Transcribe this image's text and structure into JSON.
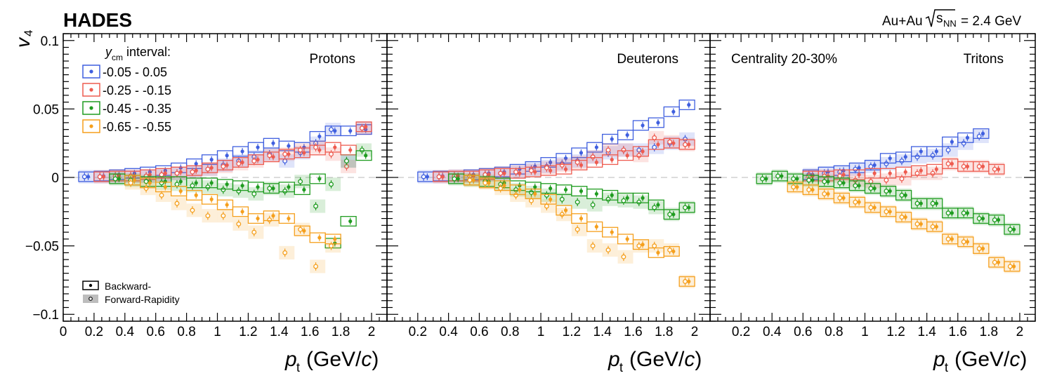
{
  "header": {
    "experiment": "HADES",
    "system": "Au+Au",
    "energy_symbol": "s",
    "energy_sub": "NN",
    "energy_value": "= 2.4 GeV"
  },
  "legend": {
    "title_var": "y",
    "title_sub": "cm",
    "title_rest": " interval:",
    "backward_label": "Backward-",
    "forward_label": "Forward-Rapidity"
  },
  "colors": {
    "blue": "#3f5fdf",
    "red": "#ee5b4f",
    "green": "#1f9c20",
    "orange": "#f59f1c"
  },
  "chart_data": [
    {
      "type": "scatter",
      "panel": "left",
      "title": "Protons",
      "annotation": "",
      "xlabel_var": "p",
      "xlabel_sub": "t",
      "xlabel_unit_pre": " (GeV/",
      "xlabel_unit_var": "c",
      "xlabel_unit_post": ")",
      "ylabel_var": "v",
      "ylabel_sub": "4",
      "xlim": [
        0,
        2.1
      ],
      "ylim": [
        -0.105,
        0.105
      ],
      "x_ticks": [
        0,
        0.2,
        0.4,
        0.6,
        0.8,
        1,
        1.2,
        1.4,
        1.6,
        1.8,
        2
      ],
      "x_tick_labels": [
        "0",
        "0.2",
        "0.4",
        "0.6",
        "0.8",
        "1",
        "1.2",
        "1.4",
        "1.6",
        "1.8",
        "2"
      ],
      "y_ticks": [
        0.1,
        0.05,
        0,
        -0.05,
        -0.1
      ],
      "y_tick_labels": [
        "0.1",
        "0.05",
        "0",
        "−0.05",
        "−0.1"
      ],
      "series": [
        {
          "name": "-0.05 - 0.05",
          "color": "blue",
          "x": [
            0.15,
            0.25,
            0.35,
            0.45,
            0.55,
            0.65,
            0.75,
            0.85,
            0.95,
            1.05,
            1.15,
            1.25,
            1.35,
            1.45,
            1.55,
            1.65,
            1.75,
            1.85,
            1.95
          ],
          "backward": [
            0.0005,
            0.001,
            0.002,
            0.003,
            0.004,
            0.005,
            0.007,
            0.01,
            0.013,
            0.016,
            0.019,
            0.022,
            0.025,
            0.023,
            0.022,
            0.03,
            0.034,
            0.034,
            0.035
          ],
          "forward": [
            0.0005,
            0.0005,
            0.001,
            0.001,
            0.001,
            0.002,
            0.003,
            0.004,
            0.006,
            0.009,
            0.012,
            0.015,
            0.017,
            0.012,
            0.018,
            0.025,
            0.035,
            0.012,
            0.036
          ]
        },
        {
          "name": "-0.25 - -0.15",
          "color": "red",
          "x": [
            0.25,
            0.35,
            0.45,
            0.55,
            0.65,
            0.75,
            0.85,
            0.95,
            1.05,
            1.15,
            1.25,
            1.35,
            1.45,
            1.55,
            1.65,
            1.75,
            1.85,
            1.95
          ],
          "backward": [
            0.0005,
            0.001,
            0.001,
            0.002,
            0.003,
            0.004,
            0.005,
            0.007,
            0.009,
            0.011,
            0.013,
            0.015,
            0.017,
            0.018,
            0.02,
            0.022,
            0.02,
            0.037
          ],
          "forward": [
            0.0005,
            0.001,
            0.001,
            0.001,
            0.002,
            0.003,
            0.004,
            0.006,
            0.008,
            0.01,
            0.012,
            0.016,
            0.017,
            0.02,
            0.022,
            0.017,
            0.008,
            0.036
          ]
        },
        {
          "name": "-0.45 - -0.35",
          "color": "green",
          "x": [
            0.35,
            0.45,
            0.55,
            0.65,
            0.75,
            0.85,
            0.95,
            1.05,
            1.15,
            1.25,
            1.35,
            1.45,
            1.55,
            1.65,
            1.75,
            1.85,
            1.95
          ],
          "backward": [
            -0.001,
            -0.002,
            -0.003,
            -0.003,
            -0.003,
            -0.004,
            -0.004,
            -0.005,
            -0.006,
            -0.007,
            -0.008,
            -0.007,
            -0.009,
            -0.001,
            -0.048,
            -0.032,
            0.016
          ],
          "forward": [
            -0.001,
            -0.002,
            -0.003,
            -0.004,
            -0.005,
            -0.006,
            -0.007,
            -0.009,
            -0.01,
            -0.012,
            -0.008,
            -0.01,
            -0.003,
            -0.021,
            -0.005,
            0.012,
            0.02
          ]
        },
        {
          "name": "-0.65 - -0.55",
          "color": "orange",
          "x": [
            0.45,
            0.55,
            0.65,
            0.75,
            0.85,
            0.95,
            1.05,
            1.15,
            1.25,
            1.35,
            1.45,
            1.55,
            1.65,
            1.75
          ],
          "backward": [
            -0.002,
            -0.004,
            -0.007,
            -0.01,
            -0.013,
            -0.016,
            -0.02,
            -0.025,
            -0.03,
            -0.028,
            -0.03,
            -0.039,
            -0.044,
            -0.045
          ],
          "forward": [
            -0.004,
            -0.008,
            -0.013,
            -0.019,
            -0.024,
            -0.028,
            -0.028,
            -0.034,
            -0.04,
            -0.031,
            -0.055,
            -0.038,
            -0.065,
            -0.05
          ]
        }
      ]
    },
    {
      "type": "scatter",
      "panel": "middle",
      "title": "Deuterons",
      "annotation": "",
      "xlim": [
        0,
        2.1
      ],
      "ylim": [
        -0.105,
        0.105
      ],
      "x_ticks": [
        0.2,
        0.4,
        0.6,
        0.8,
        1,
        1.2,
        1.4,
        1.6,
        1.8,
        2
      ],
      "x_tick_labels": [
        "0.2",
        "0.4",
        "0.6",
        "0.8",
        "1",
        "1.2",
        "1.4",
        "1.6",
        "1.8",
        "2"
      ],
      "series": [
        {
          "name": "-0.05 - 0.05",
          "color": "blue",
          "x": [
            0.25,
            0.35,
            0.45,
            0.55,
            0.65,
            0.75,
            0.85,
            0.95,
            1.05,
            1.15,
            1.25,
            1.35,
            1.45,
            1.55,
            1.65,
            1.75,
            1.85,
            1.95
          ],
          "backward": [
            0.0005,
            0.001,
            0.001,
            0.002,
            0.003,
            0.004,
            0.006,
            0.008,
            0.011,
            0.014,
            0.018,
            0.022,
            0.028,
            0.031,
            0.038,
            0.04,
            0.048,
            0.053
          ],
          "forward": [
            0.0005,
            0.0005,
            0.001,
            0.001,
            0.002,
            0.003,
            0.004,
            0.006,
            0.008,
            0.01,
            0.012,
            0.015,
            0.018,
            0.02,
            0.02,
            0.022,
            0.025,
            0.028
          ]
        },
        {
          "name": "-0.25 - -0.15",
          "color": "red",
          "x": [
            0.35,
            0.45,
            0.55,
            0.65,
            0.75,
            0.85,
            0.95,
            1.05,
            1.15,
            1.25,
            1.35,
            1.45,
            1.55,
            1.65,
            1.75,
            1.85,
            1.95
          ],
          "backward": [
            0.0005,
            0.001,
            0.001,
            0.002,
            0.003,
            0.003,
            0.004,
            0.005,
            0.006,
            0.009,
            0.011,
            0.013,
            0.016,
            0.019,
            0.024,
            0.025,
            0.024
          ],
          "forward": [
            0.0005,
            0.001,
            0.001,
            0.002,
            0.003,
            0.004,
            0.005,
            0.007,
            0.009,
            0.011,
            0.015,
            0.02,
            0.02,
            0.016,
            0.029,
            0.026,
            0.024
          ]
        },
        {
          "name": "-0.45 - -0.35",
          "color": "green",
          "x": [
            0.45,
            0.55,
            0.65,
            0.75,
            0.85,
            0.95,
            1.05,
            1.15,
            1.25,
            1.35,
            1.45,
            1.55,
            1.65,
            1.75,
            1.85,
            1.95
          ],
          "backward": [
            -0.001,
            -0.002,
            -0.003,
            -0.004,
            -0.006,
            -0.007,
            -0.008,
            -0.009,
            -0.01,
            -0.012,
            -0.013,
            -0.015,
            -0.015,
            -0.02,
            -0.027,
            -0.022
          ],
          "forward": [
            -0.001,
            -0.002,
            -0.003,
            -0.005,
            -0.009,
            -0.011,
            -0.013,
            -0.016,
            -0.018,
            -0.02,
            -0.016,
            -0.017,
            -0.018,
            -0.022,
            -0.027,
            -0.022
          ]
        },
        {
          "name": "-0.65 - -0.55",
          "color": "orange",
          "x": [
            0.55,
            0.65,
            0.75,
            0.85,
            0.95,
            1.05,
            1.15,
            1.25,
            1.35,
            1.45,
            1.55,
            1.65,
            1.75,
            1.85,
            1.95
          ],
          "backward": [
            -0.002,
            -0.004,
            -0.006,
            -0.009,
            -0.012,
            -0.016,
            -0.024,
            -0.03,
            -0.036,
            -0.04,
            -0.045,
            -0.049,
            -0.055,
            -0.054,
            -0.076
          ],
          "forward": [
            -0.002,
            -0.004,
            -0.008,
            -0.013,
            -0.017,
            -0.021,
            -0.027,
            -0.038,
            -0.05,
            -0.053,
            -0.058,
            -0.05,
            -0.05,
            -0.053,
            -0.076
          ]
        }
      ]
    },
    {
      "type": "scatter",
      "panel": "right",
      "title": "Tritons",
      "annotation": "Centrality 20-30%",
      "xlim": [
        0,
        2.1
      ],
      "ylim": [
        -0.105,
        0.105
      ],
      "x_ticks": [
        0.2,
        0.4,
        0.6,
        0.8,
        1,
        1.2,
        1.4,
        1.6,
        1.8,
        2
      ],
      "x_tick_labels": [
        "0.2",
        "0.4",
        "0.6",
        "0.8",
        "1",
        "1.2",
        "1.4",
        "1.6",
        "1.8",
        "2"
      ],
      "series": [
        {
          "name": "-0.05 - 0.05",
          "color": "blue",
          "x": [
            0.65,
            0.75,
            0.85,
            0.95,
            1.05,
            1.15,
            1.25,
            1.35,
            1.45,
            1.55,
            1.65,
            1.75
          ],
          "backward": [
            0.002,
            0.004,
            0.005,
            0.007,
            0.009,
            0.014,
            0.015,
            0.019,
            0.019,
            0.026,
            0.029,
            0.032
          ],
          "forward": [
            0.002,
            0.003,
            0.004,
            0.006,
            0.008,
            0.01,
            0.012,
            0.015,
            0.016,
            0.02,
            0.025,
            0.03
          ]
        },
        {
          "name": "-0.25 - -0.15",
          "color": "red",
          "x": [
            0.65,
            0.75,
            0.85,
            0.95,
            1.05,
            1.15,
            1.25,
            1.35,
            1.45,
            1.55,
            1.65,
            1.75,
            1.85
          ],
          "backward": [
            0.001,
            0.001,
            0.002,
            0.002,
            0.003,
            0.003,
            0.004,
            0.005,
            0.006,
            0.01,
            0.008,
            0.008,
            0.006
          ],
          "forward": [
            0.001,
            0.001,
            0.001,
            -0.002,
            -0.003,
            -0.002,
            -0.001,
            0.003,
            0.003,
            0.01,
            0.008,
            0.008,
            0.006
          ]
        },
        {
          "name": "-0.45 - -0.35",
          "color": "green",
          "x": [
            0.35,
            0.45,
            0.55,
            0.65,
            0.75,
            0.85,
            0.95,
            1.05,
            1.15,
            1.25,
            1.35,
            1.45,
            1.55,
            1.65,
            1.75,
            1.85,
            1.95
          ],
          "backward": [
            -0.001,
            0.001,
            -0.001,
            -0.002,
            -0.003,
            -0.004,
            -0.006,
            -0.008,
            -0.01,
            -0.013,
            -0.019,
            -0.019,
            -0.026,
            -0.026,
            -0.03,
            -0.031,
            -0.038
          ],
          "forward": [
            -0.001,
            0.001,
            -0.001,
            -0.002,
            -0.003,
            -0.004,
            -0.006,
            -0.008,
            -0.01,
            -0.013,
            -0.019,
            -0.019,
            -0.026,
            -0.026,
            -0.03,
            -0.031,
            -0.038
          ]
        },
        {
          "name": "-0.65 - -0.55",
          "color": "orange",
          "x": [
            0.55,
            0.65,
            0.75,
            0.85,
            0.95,
            1.05,
            1.15,
            1.25,
            1.35,
            1.45,
            1.55,
            1.65,
            1.75,
            1.85,
            1.95
          ],
          "backward": [
            -0.007,
            -0.009,
            -0.012,
            -0.015,
            -0.018,
            -0.022,
            -0.025,
            -0.029,
            -0.034,
            -0.036,
            -0.045,
            -0.047,
            -0.052,
            -0.062,
            -0.065
          ],
          "forward": [
            -0.007,
            -0.009,
            -0.012,
            -0.015,
            -0.018,
            -0.022,
            -0.025,
            -0.029,
            -0.034,
            -0.036,
            -0.045,
            -0.047,
            -0.052,
            -0.062,
            -0.065
          ]
        }
      ]
    }
  ]
}
